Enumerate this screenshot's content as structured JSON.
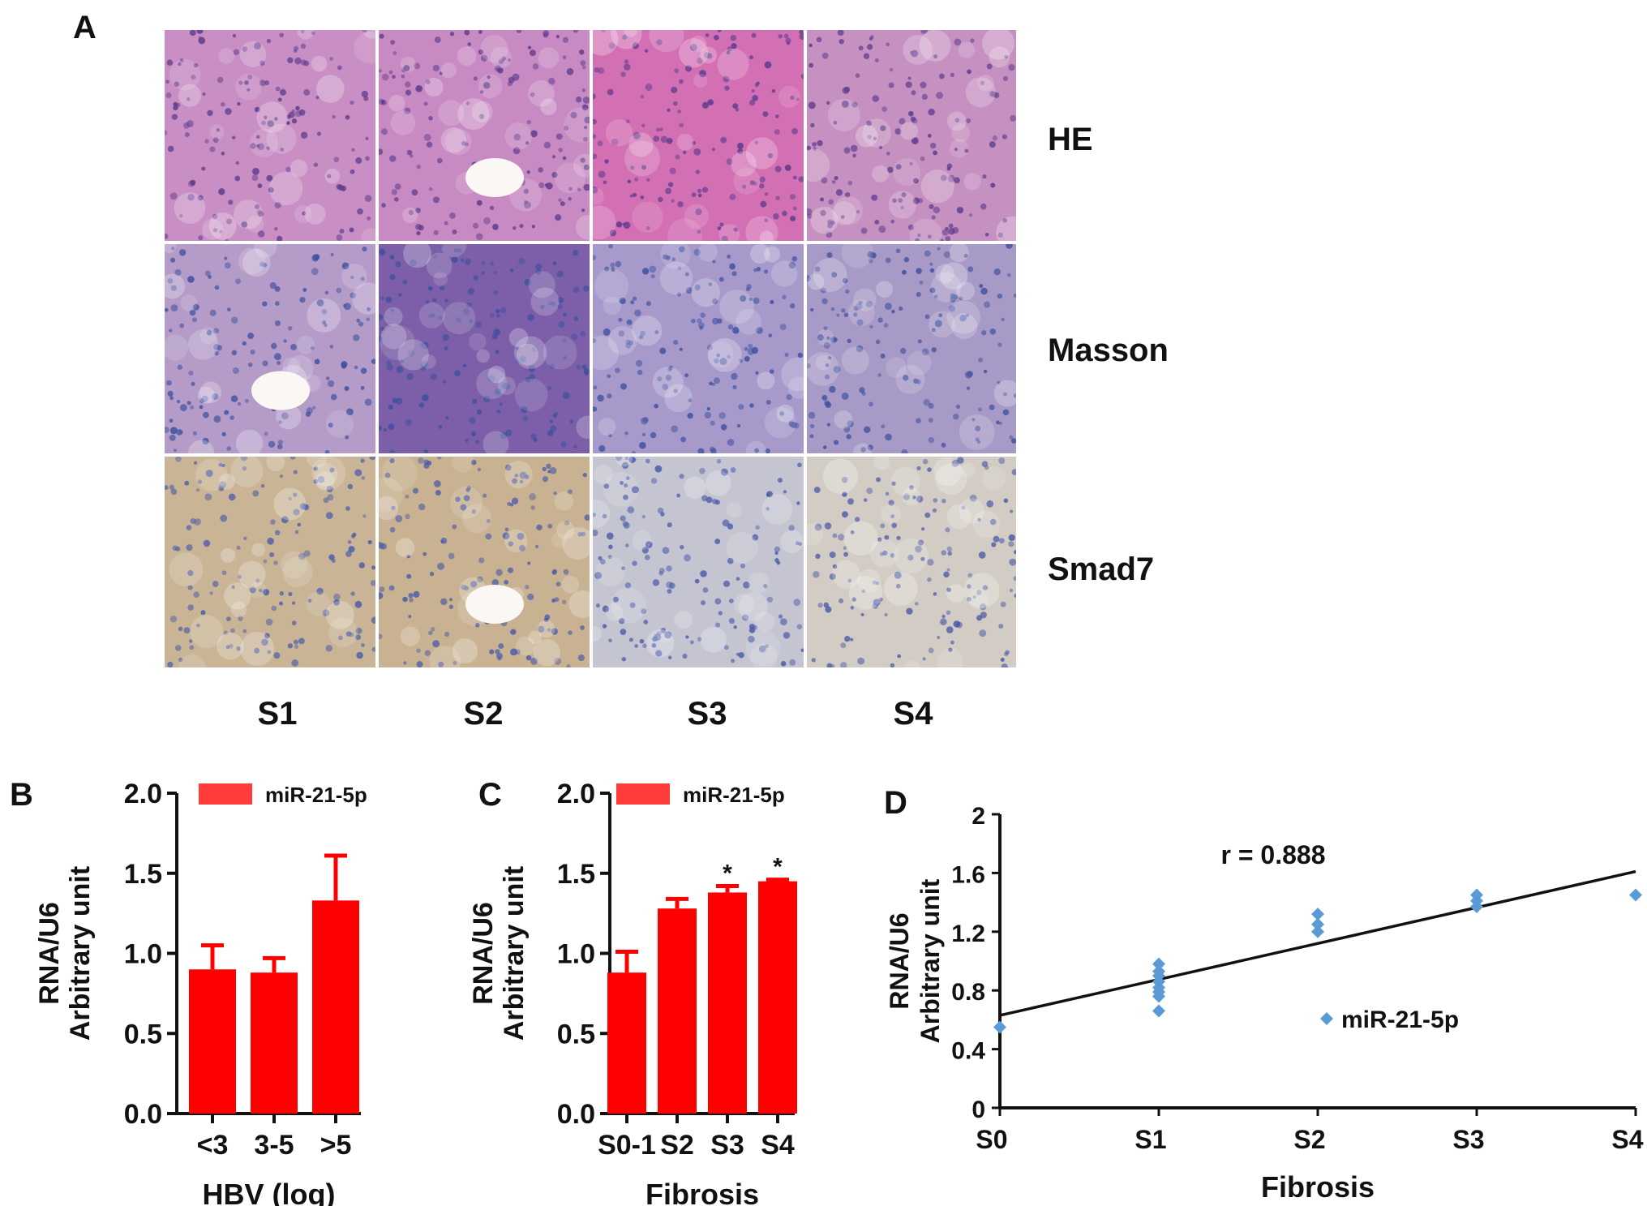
{
  "panel_a": {
    "letter": "A",
    "row_labels": [
      "HE",
      "Masson",
      "Smad7"
    ],
    "col_labels": [
      "S1",
      "S2",
      "S3",
      "S4"
    ],
    "stain_colors": {
      "HE": [
        "#c98fc4",
        "#c88ac2",
        "#d36fb3",
        "#c690c0"
      ],
      "Masson": [
        "#b49bc8",
        "#7c5fa8",
        "#a79acb",
        "#a89ac6"
      ],
      "Smad7": [
        "#c9b596",
        "#c8b291",
        "#c5c5d2",
        "#d2ccc4"
      ]
    },
    "accent_colors": {
      "HE": "#5a3a8c",
      "Masson": "#3d4f9e",
      "Smad7": "#4a5aa8"
    }
  },
  "panel_b": {
    "letter": "B"
  },
  "panel_c": {
    "letter": "C"
  },
  "panel_d": {
    "letter": "D"
  },
  "chart_data": [
    {
      "id": "B",
      "type": "bar",
      "categories": [
        "<3",
        "3-5",
        ">5"
      ],
      "values": [
        0.9,
        0.88,
        1.33
      ],
      "errors": [
        0.15,
        0.09,
        0.28
      ],
      "series_name": "miR-21-5p",
      "xlabel": "HBV (log)",
      "ylabel_line1": "RNA/U6",
      "ylabel_line2": "Arbitrary unit",
      "ylim": [
        0,
        2.0
      ],
      "yticks": [
        "0.0",
        "0.5",
        "1.0",
        "1.5",
        "2.0"
      ],
      "color": "#ff0000",
      "legend_color": "#ff3b3b"
    },
    {
      "id": "C",
      "type": "bar",
      "categories": [
        "S0-1",
        "S2",
        "S3",
        "S4"
      ],
      "values": [
        0.88,
        1.28,
        1.38,
        1.45
      ],
      "errors": [
        0.13,
        0.06,
        0.04,
        0.01
      ],
      "significance": [
        "",
        "",
        "*",
        "*"
      ],
      "series_name": "miR-21-5p",
      "xlabel": "Fibrosis",
      "ylabel_line1": "RNA/U6",
      "ylabel_line2": "Arbitrary unit",
      "ylim": [
        0,
        2.0
      ],
      "yticks": [
        "0.0",
        "0.5",
        "1.0",
        "1.5",
        "2.0"
      ],
      "color": "#ff0000",
      "legend_color": "#ff3b3b"
    },
    {
      "id": "D",
      "type": "scatter",
      "categories": [
        "S0",
        "S1",
        "S2",
        "S3",
        "S4"
      ],
      "points": [
        {
          "x": 0,
          "y": 0.55
        },
        {
          "x": 1,
          "y": 0.98
        },
        {
          "x": 1,
          "y": 0.93
        },
        {
          "x": 1,
          "y": 0.9
        },
        {
          "x": 1,
          "y": 0.86
        },
        {
          "x": 1,
          "y": 0.82
        },
        {
          "x": 1,
          "y": 0.79
        },
        {
          "x": 1,
          "y": 0.76
        },
        {
          "x": 1,
          "y": 0.66
        },
        {
          "x": 2,
          "y": 1.32
        },
        {
          "x": 2,
          "y": 1.25
        },
        {
          "x": 2,
          "y": 1.2
        },
        {
          "x": 3,
          "y": 1.45
        },
        {
          "x": 3,
          "y": 1.41
        },
        {
          "x": 3,
          "y": 1.37
        },
        {
          "x": 4,
          "y": 1.45
        }
      ],
      "fit_line": {
        "y_at_x0": 0.63,
        "y_at_x4": 1.61
      },
      "annotation": "r = 0.888",
      "series_name": "miR-21-5p",
      "xlabel": "Fibrosis",
      "ylabel_line1": "RNA/U6",
      "ylabel_line2": "Arbitrary unit",
      "ylim": [
        0,
        2
      ],
      "yticks": [
        "0",
        "0.4",
        "0.8",
        "1.2",
        "1.6",
        "2"
      ],
      "ytick_values": [
        0,
        0.4,
        0.8,
        1.2,
        1.6,
        2
      ],
      "color": "#5b9bd5"
    }
  ]
}
